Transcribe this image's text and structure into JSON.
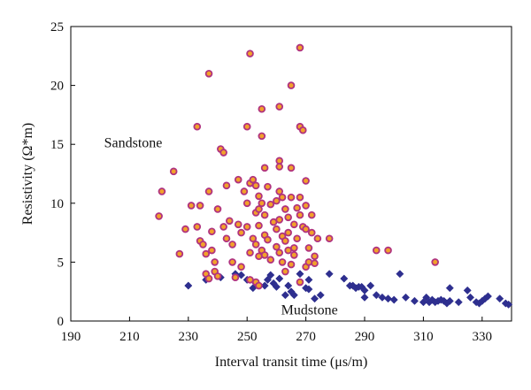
{
  "chart_data": {
    "type": "scatter",
    "title": "",
    "xlabel": "Interval transit time (μs/m)",
    "ylabel": "Resistivity (Ω*m)",
    "xlim": [
      190,
      340
    ],
    "ylim": [
      0,
      25
    ],
    "xticks": [
      190,
      210,
      230,
      250,
      270,
      290,
      310,
      330
    ],
    "yticks": [
      0,
      5,
      10,
      15,
      20,
      25
    ],
    "grid": false,
    "colors": {
      "sandstone_fill": "#f2a12a",
      "sandstone_edge": "#b0337f",
      "mudstone": "#2e2f8f",
      "axis": "#000000"
    },
    "annotations": [
      {
        "name": "sandstone-label",
        "text": "Sandstone",
        "x": 217,
        "y": 15.2
      },
      {
        "name": "mudstone-label",
        "text": "Mudstone",
        "x": 264,
        "y": 0.4
      }
    ],
    "series": [
      {
        "name": "Sandstone",
        "marker": "circle",
        "points": [
          [
            220,
            8.9
          ],
          [
            221,
            11
          ],
          [
            225,
            12.7
          ],
          [
            227,
            5.7
          ],
          [
            229,
            7.8
          ],
          [
            231,
            9.8
          ],
          [
            233,
            16.5
          ],
          [
            234,
            9.8
          ],
          [
            233,
            8.0
          ],
          [
            234,
            6.8
          ],
          [
            235,
            6.5
          ],
          [
            236,
            5.7
          ],
          [
            236,
            4.0
          ],
          [
            237,
            3.6
          ],
          [
            237,
            21
          ],
          [
            237,
            11
          ],
          [
            238,
            7.6
          ],
          [
            238,
            6.0
          ],
          [
            239,
            5.0
          ],
          [
            239,
            4.2
          ],
          [
            240,
            3.8
          ],
          [
            240,
            9.5
          ],
          [
            241,
            14.6
          ],
          [
            242,
            14.3
          ],
          [
            242,
            8.0
          ],
          [
            243,
            11.5
          ],
          [
            243,
            7.0
          ],
          [
            244,
            8.5
          ],
          [
            245,
            6.5
          ],
          [
            245,
            5.0
          ],
          [
            246,
            3.7
          ],
          [
            247,
            12.0
          ],
          [
            247,
            8.2
          ],
          [
            248,
            7.5
          ],
          [
            248,
            4.6
          ],
          [
            249,
            11.0
          ],
          [
            250,
            16.5
          ],
          [
            250,
            10.0
          ],
          [
            250,
            8.0
          ],
          [
            251,
            22.7
          ],
          [
            251,
            11.7
          ],
          [
            251,
            5.8
          ],
          [
            251,
            3.5
          ],
          [
            252,
            12.0
          ],
          [
            252,
            7.0
          ],
          [
            253,
            11.5
          ],
          [
            253,
            9.2
          ],
          [
            253,
            6.5
          ],
          [
            253,
            3.3
          ],
          [
            254,
            10.6
          ],
          [
            254,
            9.5
          ],
          [
            254,
            8.1
          ],
          [
            254,
            5.5
          ],
          [
            254,
            3.0
          ],
          [
            255,
            18
          ],
          [
            255,
            15.7
          ],
          [
            255,
            10
          ],
          [
            255,
            6.0
          ],
          [
            256,
            13
          ],
          [
            256,
            9
          ],
          [
            256,
            7.3
          ],
          [
            256,
            5.6
          ],
          [
            257,
            11.4
          ],
          [
            257,
            6.9
          ],
          [
            258,
            9.9
          ],
          [
            258,
            5.2
          ],
          [
            259,
            8.4
          ],
          [
            260,
            10.2
          ],
          [
            260,
            7.8
          ],
          [
            260,
            6.3
          ],
          [
            261,
            18.2
          ],
          [
            261,
            13.6
          ],
          [
            261,
            13.1
          ],
          [
            261,
            11
          ],
          [
            261,
            8.6
          ],
          [
            261,
            5.8
          ],
          [
            262,
            10.5
          ],
          [
            262,
            7.2
          ],
          [
            262,
            5.0
          ],
          [
            263,
            9.5
          ],
          [
            263,
            6.8
          ],
          [
            263,
            4.2
          ],
          [
            264,
            8.8
          ],
          [
            264,
            7.5
          ],
          [
            264,
            6.0
          ],
          [
            265,
            20
          ],
          [
            265,
            13
          ],
          [
            265,
            10.5
          ],
          [
            265,
            4.8
          ],
          [
            266,
            8.2
          ],
          [
            266,
            6.2
          ],
          [
            266,
            5.6
          ],
          [
            267,
            9.6
          ],
          [
            267,
            7.0
          ],
          [
            268,
            23.2
          ],
          [
            268,
            16.5
          ],
          [
            268,
            10.5
          ],
          [
            268,
            9.0
          ],
          [
            268,
            3.3
          ],
          [
            269,
            16.2
          ],
          [
            269,
            8.0
          ],
          [
            270,
            11.9
          ],
          [
            270,
            9.8
          ],
          [
            270,
            7.8
          ],
          [
            270,
            4.6
          ],
          [
            271,
            6.2
          ],
          [
            271,
            5.0
          ],
          [
            272,
            9.0
          ],
          [
            272,
            7.5
          ],
          [
            273,
            5.5
          ],
          [
            273,
            4.9
          ],
          [
            274,
            7.0
          ],
          [
            278,
            7.0
          ],
          [
            294,
            6.0
          ],
          [
            298,
            6.0
          ],
          [
            314,
            5.0
          ]
        ]
      },
      {
        "name": "Mudstone",
        "marker": "diamond",
        "points": [
          [
            230,
            3.0
          ],
          [
            236,
            3.5
          ],
          [
            241,
            3.7
          ],
          [
            246,
            4.0
          ],
          [
            248,
            3.9
          ],
          [
            250,
            3.5
          ],
          [
            252,
            2.8
          ],
          [
            253,
            3.2
          ],
          [
            256,
            3.0
          ],
          [
            257,
            3.5
          ],
          [
            258,
            3.9
          ],
          [
            259,
            3.2
          ],
          [
            260,
            2.9
          ],
          [
            261,
            3.6
          ],
          [
            263,
            2.2
          ],
          [
            264,
            3.0
          ],
          [
            265,
            2.5
          ],
          [
            266,
            2.2
          ],
          [
            268,
            4.0
          ],
          [
            270,
            2.8
          ],
          [
            271,
            3.5
          ],
          [
            271,
            2.7
          ],
          [
            273,
            1.9
          ],
          [
            275,
            2.2
          ],
          [
            278,
            4.0
          ],
          [
            283,
            3.6
          ],
          [
            285,
            3.0
          ],
          [
            286,
            3.0
          ],
          [
            287,
            2.8
          ],
          [
            288,
            2.9
          ],
          [
            289,
            2.9
          ],
          [
            290,
            2.6
          ],
          [
            290,
            2.0
          ],
          [
            292,
            3.0
          ],
          [
            294,
            2.2
          ],
          [
            296,
            2.0
          ],
          [
            298,
            1.9
          ],
          [
            300,
            1.8
          ],
          [
            302,
            4.0
          ],
          [
            304,
            2.0
          ],
          [
            307,
            1.7
          ],
          [
            310,
            1.6
          ],
          [
            311,
            2.0
          ],
          [
            312,
            1.6
          ],
          [
            313,
            1.8
          ],
          [
            314,
            1.6
          ],
          [
            315,
            1.7
          ],
          [
            316,
            1.8
          ],
          [
            317,
            1.7
          ],
          [
            318,
            1.5
          ],
          [
            319,
            1.7
          ],
          [
            319,
            2.8
          ],
          [
            322,
            1.6
          ],
          [
            325,
            2.6
          ],
          [
            326,
            2.0
          ],
          [
            328,
            1.6
          ],
          [
            329,
            1.5
          ],
          [
            330,
            1.7
          ],
          [
            331,
            1.9
          ],
          [
            332,
            2.1
          ],
          [
            336,
            1.9
          ],
          [
            338,
            1.5
          ],
          [
            339,
            1.4
          ]
        ]
      }
    ]
  }
}
